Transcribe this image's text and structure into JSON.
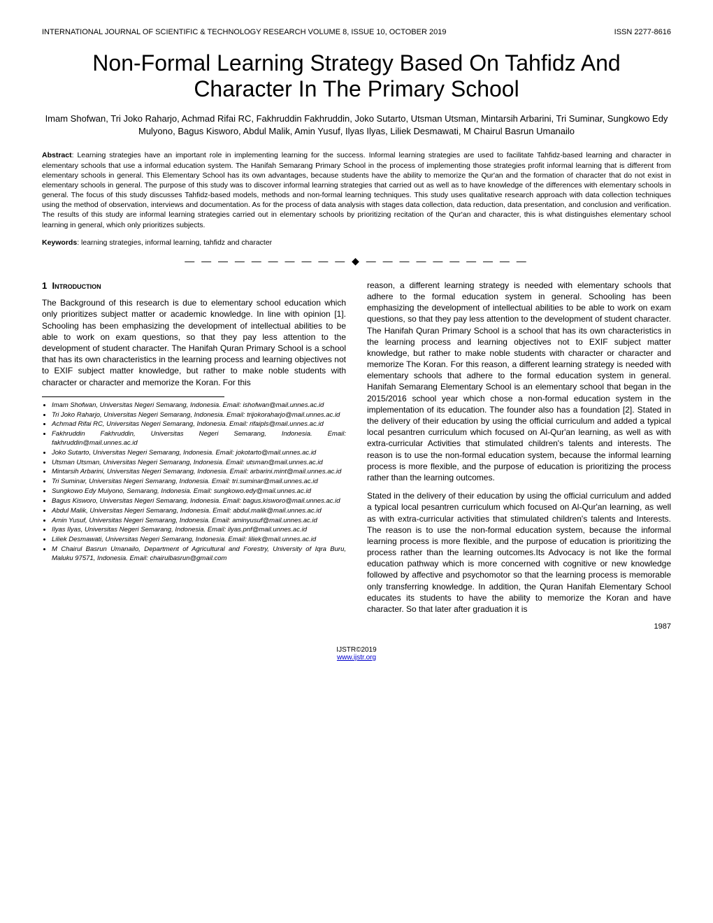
{
  "header": {
    "journal": "INTERNATIONAL JOURNAL OF SCIENTIFIC & TECHNOLOGY RESEARCH VOLUME 8, ISSUE 10, OCTOBER 2019",
    "issn": "ISSN 2277-8616"
  },
  "title": "Non-Formal Learning Strategy Based On Tahfidz And Character In The Primary School",
  "authors": "Imam Shofwan, Tri Joko Raharjo, Achmad Rifai RC, Fakhruddin Fakhruddin, Joko Sutarto, Utsman Utsman, Mintarsih Arbarini, Tri Suminar, Sungkowo Edy Mulyono, Bagus Kisworo, Abdul Malik, Amin Yusuf, Ilyas Ilyas, Liliek Desmawati, M Chairul Basrun Umanailo",
  "abstract_label": "Abstract",
  "abstract": ": Learning strategies have an important role in implementing learning for the success. Informal learning strategies are used to facilitate Tahfidz-based learning and character in elementary schools that use a informal education system. The Hanifah Semarang Primary School in the process of implementing those strategies profit informal learning that is different from elementary schools in general. This Elementary School has its own advantages, because students have the ability to memorize the Qur'an and the formation of character that do not exist in elementary schools in general. The purpose of this study was to discover informal learning strategies that carried out as well as to have knowledge of the differences with elementary schools in general. The focus of this study discusses Tahfidz-based models, methods and non-formal learning techniques. This study uses qualitative research approach with data collection techniques using the method of observation, interviews and documentation. As for the process of data analysis with stages data collection, data reduction, data presentation, and conclusion and verification. The results of this study are informal learning strategies carried out in elementary schools by prioritizing recitation of the Qur'an and character, this is what distinguishes elementary school learning in general, which only prioritizes subjects.",
  "keywords_label": "Keywords",
  "keywords": ": learning strategies, informal learning, tahfidz and character",
  "divider": "— — — — — — — — — —   ◆   — — — — — — — — — —",
  "section1_num": "1",
  "section1_name": "Introduction",
  "col1_p1": "The Background of this research is due to elementary school education which only prioritizes subject matter or academic knowledge. In line with opinion [1]. Schooling has been emphasizing the development of intellectual abilities to be able to work on exam questions, so that they pay less attention to the development of student character. The Hanifah Quran Primary School is a school that has its own characteristics in the learning process and learning objectives not to EXIF subject matter knowledge, but rather to make noble students with character or character and memorize the Koran. For this",
  "col2_p1": "reason, a different learning strategy is needed with elementary schools that adhere to the formal education system in general. Schooling has been emphasizing the development of intellectual abilities to be able to work on exam questions, so that they pay less attention to the development of student character. The Hanifah Quran Primary School is a school that has its own characteristics in the learning process and learning objectives not to EXIF subject matter knowledge, but rather to make noble students with character or character and memorize The Koran. For this reason, a different learning strategy is needed with elementary schools that adhere to the formal education system in general. Hanifah Semarang Elementary School is an elementary school that began in the 2015/2016 school year which chose a non-formal education system in the implementation of its education. The founder also has a foundation [2]. Stated in the delivery of their education by using the official curriculum and added a typical local pesantren curriculum which focused on Al-Qur'an learning, as well as with extra-curricular Activities that stimulated children's talents and interests. The reason is to use the non-formal education system, because the informal learning process is more flexible, and the purpose of education is prioritizing the process rather than the learning outcomes.",
  "col2_p2": "Stated in the delivery of their education by using the official curriculum and added a typical local pesantren curriculum which focused on Al-Qur'an learning, as well as with extra-curricular activities that stimulated children's talents and Interests. The reason is to use the non-formal education system, because the informal learning process is more flexible, and the purpose of education is prioritizing the process rather than the learning outcomes.Its Advocacy is not like the formal education pathway which is more concerned with cognitive or new knowledge followed by affective and psychomotor so that the learning process is memorable only transferring knowledge. In addition, the Quran Hanifah Elementary School educates its students to have the ability to memorize the Koran and have character. So that later after graduation it is",
  "affiliations": [
    "Imam Shofwan, Universitas Negeri Semarang, Indonesia. Email: ishofwan@mail.unnes.ac.id",
    "Tri Joko Raharjo, Universitas Negeri Semarang, Indonesia. Email: trijokoraharjo@mail.unnes.ac.id",
    "Achmad Rifai RC, Universitas Negeri Semarang, Indonesia. Email: rifaipls@mail.unnes.ac.id",
    "Fakhruddin Fakhruddin, Universitas Negeri Semarang, Indonesia. Email: fakhruddin@mail.unnes.ac.id",
    "Joko Sutarto, Universitas Negeri Semarang, Indonesia. Email: jokotarto@mail.unnes.ac.id",
    "Utsman Utsman, Universitas Negeri Semarang, Indonesia. Email: utsman@mail.unnes.ac.id",
    "Mintarsih Arbarini, Universitas Negeri Semarang, Indonesia. Email: arbarini.mint@mail.unnes.ac.id",
    "Tri Suminar, Universitas Negeri Semarang, Indonesia. Email: tri.suminar@mail.unnes.ac.id",
    "Sungkowo Edy Mulyono, Semarang, Indonesia. Email: sungkowo.edy@mail.unnes.ac.id",
    "Bagus Kisworo, Universitas Negeri Semarang, Indonesia. Email: bagus.kisworo@mail.unnes.ac.id",
    "Abdul Malik, Universitas Negeri Semarang, Indonesia. Email: abdul.malik@mail.unnes.ac.id",
    "Amin Yusuf, Universitas Negeri Semarang, Indonesia. Email: aminyusuf@mail.unnes.ac.id",
    "Ilyas Ilyas, Universitas Negeri Semarang, Indonesia. Email: ilyas.pnf@mail.unnes.ac.id",
    "Liliek Desmawati, Universitas Negeri Semarang, Indonesia. Email: liliek@mail.unnes.ac.id",
    "M Chairul Basrun Umanailo, Department of Agricultural and Forestry, University of Iqra Buru, Maluku 97571, Indonesia. Email: chairulbasrun@gmail.com"
  ],
  "footer": {
    "copyright": "IJSTR©2019",
    "url": "www.ijstr.org",
    "page": "1987"
  }
}
